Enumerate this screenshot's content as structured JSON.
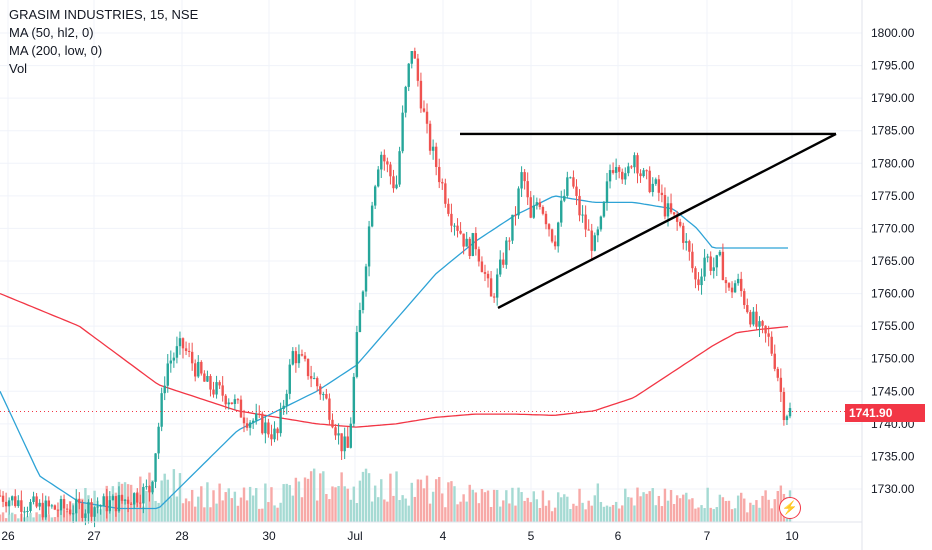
{
  "legend": {
    "title": "GRASIM INDUSTRIES, 15, NSE",
    "ma50": "MA (50, hl2, 0)",
    "ma200": "MA (200, low, 0)",
    "vol": "Vol"
  },
  "last_price_label": "1741.90",
  "colors": {
    "up": "#26a69a",
    "down": "#ef5350",
    "ma50": "#2ea3d6",
    "ma200": "#f23645",
    "pattern_lines": "#000000",
    "volume_up": "#a5dad3",
    "volume_down": "#f7a9a7"
  },
  "icons": {
    "alert": "lightning-bolt-icon"
  },
  "chart_data": {
    "type": "candlestick",
    "title": "GRASIM INDUSTRIES, 15, NSE",
    "xlabel": "",
    "ylabel": "",
    "x_ticks": [
      "26",
      "27",
      "28",
      "30",
      "Jul",
      "4",
      "5",
      "6",
      "7",
      "10"
    ],
    "y_ticks": [
      1730,
      1735,
      1740,
      1745,
      1750,
      1755,
      1760,
      1765,
      1770,
      1775,
      1780,
      1785,
      1790,
      1795,
      1800
    ],
    "ylim": [
      1726,
      1805
    ],
    "last_price": 1741.9,
    "grid": true,
    "legend_placement": "top-left",
    "candle_anchors": {
      "x_pct": [
        0,
        5,
        10,
        15,
        19,
        21,
        23,
        26,
        29,
        31,
        33,
        35,
        37,
        39,
        41,
        42,
        43,
        44,
        45,
        46,
        47,
        48,
        50,
        51,
        52,
        54,
        56,
        57,
        58,
        59,
        60,
        61,
        62,
        63,
        65,
        66,
        67,
        68,
        70,
        71,
        72,
        73,
        74,
        75,
        76,
        77,
        78,
        79,
        80,
        81,
        83,
        84,
        86,
        87,
        88,
        89,
        90,
        91,
        92,
        93,
        94,
        95,
        96,
        97,
        98,
        99,
        100
      ],
      "close": [
        1729,
        1727,
        1727,
        1728,
        1730,
        1749,
        1752,
        1746,
        1744,
        1741,
        1740,
        1738,
        1751,
        1748,
        1744,
        1741,
        1737,
        1736,
        1752,
        1763,
        1775,
        1782,
        1776,
        1789,
        1798,
        1784,
        1776,
        1772,
        1770,
        1767,
        1768,
        1764,
        1759,
        1763,
        1772,
        1779,
        1771,
        1775,
        1768,
        1774,
        1778,
        1773,
        1770,
        1767,
        1771,
        1779,
        1781,
        1777,
        1782,
        1778,
        1776,
        1773,
        1770,
        1766,
        1761,
        1766,
        1764,
        1765,
        1760,
        1762,
        1759,
        1756,
        1754,
        1753,
        1749,
        1742,
        1741.9
      ]
    },
    "ma50_anchors": {
      "x_pct": [
        0,
        5,
        10,
        15,
        20,
        25,
        30,
        35,
        40,
        45,
        50,
        55,
        60,
        65,
        70,
        75,
        80,
        85,
        88,
        90
      ],
      "value": [
        1745,
        1732,
        1728,
        1727,
        1727,
        1733,
        1739,
        1742,
        1745,
        1749,
        1756,
        1763,
        1768,
        1772,
        1775,
        1774,
        1774,
        1773,
        1770,
        1767
      ]
    },
    "ma200_anchors": {
      "x_pct": [
        0,
        10,
        20,
        30,
        40,
        45,
        50,
        55,
        60,
        65,
        70,
        75,
        80,
        85,
        90,
        93,
        96,
        100
      ],
      "value": [
        1760,
        1755,
        1746,
        1742,
        1740,
        1739.5,
        1740,
        1741,
        1741.5,
        1741.5,
        1741.3,
        1742,
        1744,
        1748,
        1752,
        1754,
        1754.5,
        1755
      ]
    },
    "volume_anchors": {
      "x_pct": [
        0,
        8,
        10,
        11,
        18,
        20,
        25,
        30,
        38,
        40,
        41,
        42,
        43,
        44,
        47,
        48,
        50,
        55,
        60,
        65,
        70,
        75,
        80,
        85,
        88,
        89,
        90,
        95,
        98,
        100
      ],
      "relative_volume": [
        0.15,
        0.2,
        0.6,
        0.55,
        0.7,
        0.9,
        0.7,
        0.5,
        0.75,
        0.85,
        0.95,
        0.75,
        0.8,
        0.9,
        0.85,
        0.9,
        0.8,
        0.7,
        0.6,
        0.55,
        0.5,
        0.6,
        0.55,
        0.5,
        0.55,
        0.6,
        0.5,
        0.45,
        0.55,
        0.6
      ]
    },
    "annotations": [
      {
        "type": "line",
        "label": "resistance",
        "from": {
          "x_tick": "4",
          "y": 1784.5
        },
        "to": {
          "x_tick": "beyond-10",
          "y": 1784.5
        }
      },
      {
        "type": "line",
        "label": "rising trendline",
        "from": {
          "x_tick": "5",
          "y": 1758
        },
        "to": {
          "x_tick": "beyond-10",
          "y": 1784.5
        }
      }
    ]
  }
}
